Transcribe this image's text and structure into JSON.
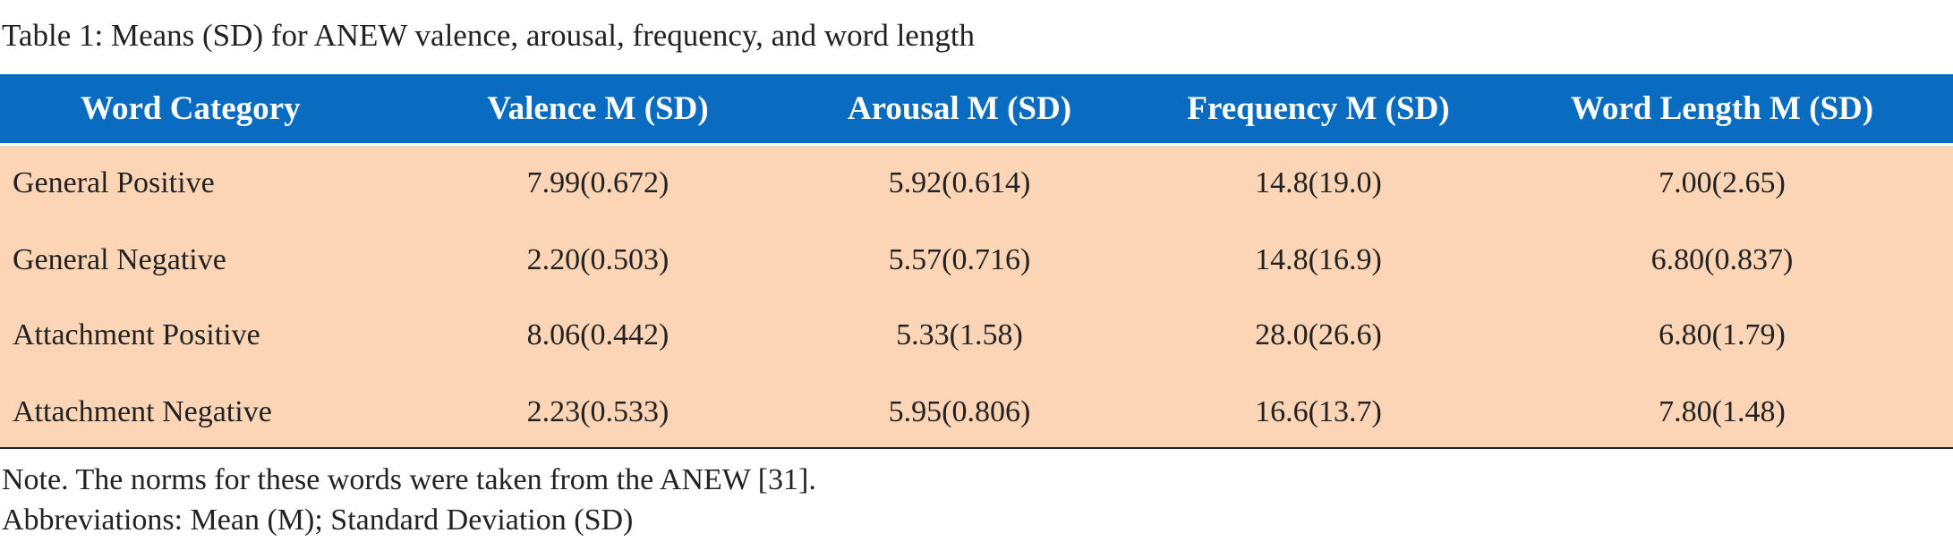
{
  "title": "Table 1: Means (SD) for ANEW valence, arousal, frequency, and word length",
  "table": {
    "header": [
      "Word Category",
      "Valence M (SD)",
      "Arousal M (SD)",
      "Frequency M (SD)",
      "Word Length M (SD)"
    ],
    "rows": [
      [
        "General Positive",
        "7.99(0.672)",
        "5.92(0.614)",
        "14.8(19.0)",
        "7.00(2.65)"
      ],
      [
        "General Negative",
        "2.20(0.503)",
        "5.57(0.716)",
        "14.8(16.9)",
        "6.80(0.837)"
      ],
      [
        "Attachment Positive",
        "8.06(0.442)",
        "5.33(1.58)",
        "28.0(26.6)",
        "6.80(1.79)"
      ],
      [
        "Attachment Negative",
        "2.23(0.533)",
        "5.95(0.806)",
        "16.6(13.7)",
        "7.80(1.48)"
      ]
    ]
  },
  "notes": [
    "Note. The norms for these words were taken from the ANEW [31].",
    "Abbreviations: Mean (M); Standard Deviation (SD)"
  ]
}
